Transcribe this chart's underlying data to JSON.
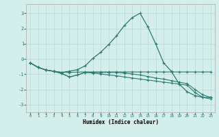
{
  "xlabel": "Humidex (Indice chaleur)",
  "background_color": "#d4eeeb",
  "line_color": "#2a7a72",
  "grid_color": "#b8d8d4",
  "xlim": [
    -0.5,
    23.5
  ],
  "ylim": [
    -3.5,
    3.6
  ],
  "yticks": [
    -3,
    -2,
    -1,
    0,
    1,
    2,
    3
  ],
  "xticks": [
    0,
    1,
    2,
    3,
    4,
    5,
    6,
    7,
    8,
    9,
    10,
    11,
    12,
    13,
    14,
    15,
    16,
    17,
    18,
    19,
    20,
    21,
    22,
    23
  ],
  "line1_x": [
    0,
    1,
    2,
    3,
    4,
    5,
    6,
    7,
    8,
    9,
    10,
    11,
    12,
    13,
    14,
    15,
    16,
    17,
    18,
    19,
    20,
    21,
    22,
    23
  ],
  "line1_y": [
    -0.25,
    -0.55,
    -0.72,
    -0.8,
    -0.88,
    -0.8,
    -0.7,
    -0.45,
    0.05,
    0.45,
    0.95,
    1.52,
    2.2,
    2.72,
    3.0,
    2.1,
    0.98,
    -0.25,
    -0.82,
    -1.65,
    -2.15,
    -2.4,
    -2.52,
    -2.52
  ],
  "line2_x": [
    0,
    1,
    2,
    3,
    4,
    5,
    6,
    7,
    8,
    9,
    10,
    11,
    12,
    13,
    14,
    15,
    16,
    17,
    18,
    19,
    20,
    21,
    22,
    23
  ],
  "line2_y": [
    -0.25,
    -0.55,
    -0.72,
    -0.8,
    -0.88,
    -0.88,
    -0.86,
    -0.85,
    -0.85,
    -0.85,
    -0.85,
    -0.85,
    -0.85,
    -0.85,
    -0.85,
    -0.85,
    -0.85,
    -0.85,
    -0.85,
    -0.85,
    -0.85,
    -0.85,
    -0.85,
    -0.85
  ],
  "line3_x": [
    0,
    1,
    2,
    3,
    4,
    5,
    6,
    7,
    8,
    9,
    10,
    11,
    12,
    13,
    14,
    15,
    16,
    17,
    18,
    19,
    20,
    21,
    22,
    23
  ],
  "line3_y": [
    -0.25,
    -0.55,
    -0.72,
    -0.8,
    -0.95,
    -1.18,
    -1.05,
    -0.88,
    -0.92,
    -0.98,
    -1.05,
    -1.1,
    -1.18,
    -1.25,
    -1.32,
    -1.38,
    -1.45,
    -1.52,
    -1.58,
    -1.65,
    -1.72,
    -2.2,
    -2.52,
    -2.62
  ],
  "line4_x": [
    0,
    1,
    2,
    3,
    4,
    5,
    6,
    7,
    8,
    9,
    10,
    11,
    12,
    13,
    14,
    15,
    16,
    17,
    18,
    19,
    20,
    21,
    22,
    23
  ],
  "line4_y": [
    -0.25,
    -0.55,
    -0.72,
    -0.82,
    -0.95,
    -1.18,
    -1.05,
    -0.88,
    -0.88,
    -0.88,
    -0.88,
    -0.88,
    -0.92,
    -0.98,
    -1.05,
    -1.15,
    -1.25,
    -1.32,
    -1.42,
    -1.52,
    -1.62,
    -2.0,
    -2.35,
    -2.52
  ]
}
